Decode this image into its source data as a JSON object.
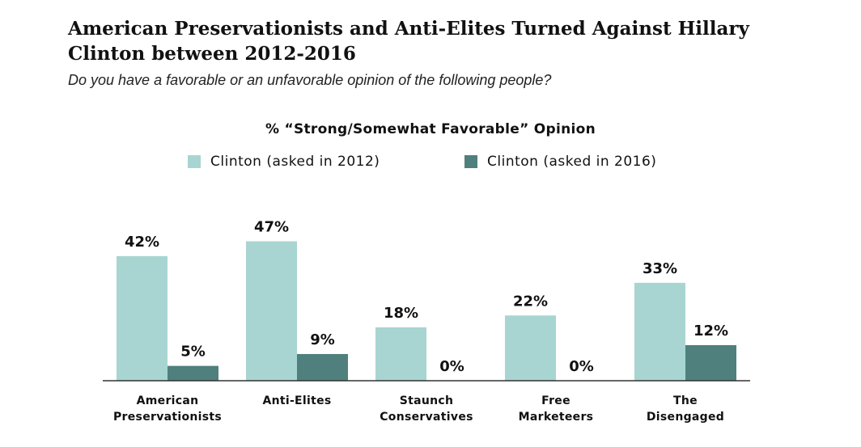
{
  "title": "American Preservationists and Anti-Elites Turned Against Hillary Clinton between 2012-2016",
  "subtitle": "Do you have a favorable or an unfavorable opinion of the following people?",
  "colors": {
    "series_2012": "#a8d5d1",
    "series_2016": "#4f807d",
    "axis": "#333333"
  },
  "chart_data": {
    "type": "bar",
    "title": "% “Strong/Somewhat Favorable” Opinion",
    "categories": [
      [
        "American",
        "Preservationists"
      ],
      [
        "Anti-Elites"
      ],
      [
        "Staunch",
        "Conservatives"
      ],
      [
        "Free",
        "Marketeers"
      ],
      [
        "The",
        "Disengaged"
      ]
    ],
    "series": [
      {
        "name": "Clinton (asked in 2012)",
        "values": [
          42,
          47,
          18,
          22,
          33
        ],
        "labels": [
          "42%",
          "47%",
          "18%",
          "22%",
          "33%"
        ]
      },
      {
        "name": "Clinton (asked in 2016)",
        "values": [
          5,
          9,
          0,
          0,
          12
        ],
        "labels": [
          "5%",
          "9%",
          "0%",
          "0%",
          "12%"
        ]
      }
    ],
    "ylim": [
      0,
      100
    ],
    "legend_position": "top-center",
    "grid": false
  }
}
